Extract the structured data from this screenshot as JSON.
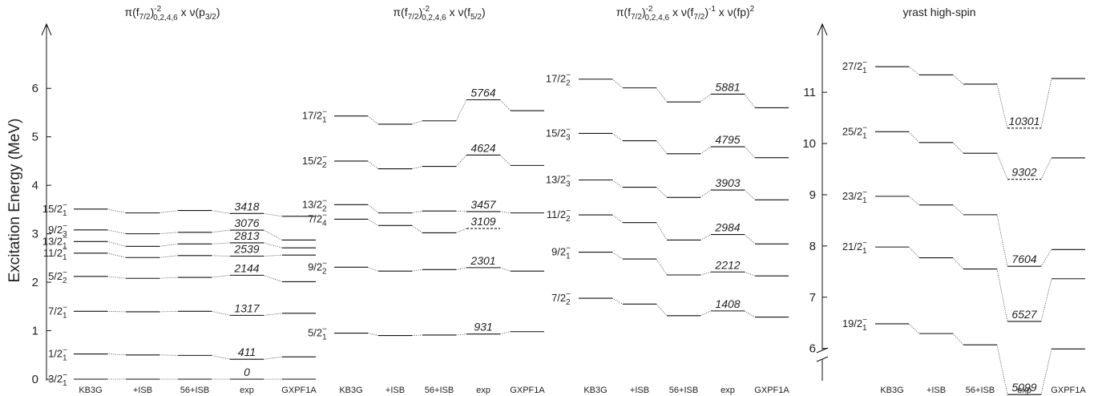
{
  "figure": {
    "ylabel": "Excitation Energy (MeV)",
    "model_labels": [
      "KB3G",
      "+ISB",
      "56+ISB",
      "exp",
      "GXPF1A"
    ],
    "panels": [
      {
        "title": "π(f7/2)-2 0,2,4,6 x ν(p3/2)",
        "title_parts": {
          "pre": "π(f",
          "sub1": "7/2",
          "mid": ")",
          "sup": "-2",
          "sub2": "0,2,4,6",
          "post": " x ν(p",
          "sub3": "3/2",
          "end": ")"
        },
        "ylim": [
          0,
          6.5
        ],
        "yticks": [
          0,
          1,
          2,
          3,
          4,
          5,
          6
        ],
        "levels": [
          {
            "label": "15/2-1",
            "j": "15/2",
            "n": "1",
            "values": [
              3.51,
              3.43,
              3.48,
              3.418,
              3.36
            ],
            "exp": "3418",
            "dashed": false
          },
          {
            "label": "9/2-3",
            "j": "9/2",
            "n": "3",
            "values": [
              3.08,
              3.0,
              3.03,
              3.076,
              2.87
            ],
            "exp": "3076",
            "dashed": false
          },
          {
            "label": "13/2-1",
            "j": "13/2",
            "n": "1",
            "values": [
              2.84,
              2.74,
              2.79,
              2.813,
              2.71
            ],
            "exp": "2813",
            "dashed": false
          },
          {
            "label": "11/2-1",
            "j": "11/2",
            "n": "1",
            "values": [
              2.6,
              2.51,
              2.55,
              2.539,
              2.56
            ],
            "exp": "2539",
            "dashed": false
          },
          {
            "label": "5/2-2",
            "j": "5/2",
            "n": "2",
            "values": [
              2.12,
              2.08,
              2.1,
              2.144,
              2.01
            ],
            "exp": "2144",
            "dashed": false
          },
          {
            "label": "7/2-1",
            "j": "7/2",
            "n": "1",
            "values": [
              1.4,
              1.39,
              1.4,
              1.317,
              1.36
            ],
            "exp": "1317",
            "dashed": false
          },
          {
            "label": "1/2-1",
            "j": "1/2",
            "n": "1",
            "values": [
              0.52,
              0.5,
              0.49,
              0.411,
              0.46
            ],
            "exp": "411",
            "dashed": false
          },
          {
            "label": "3/2-1",
            "j": "3/2",
            "n": "1",
            "values": [
              0,
              0,
              0,
              0,
              0
            ],
            "exp": "0",
            "dashed": false
          }
        ]
      },
      {
        "title": "π(f7/2)-2 0,2,4,6 x ν(f5/2)",
        "title_parts": {
          "pre": "π(f",
          "sub1": "7/2",
          "mid": ")",
          "sup": "-2",
          "sub2": "0,2,4,6",
          "post": " x ν(f",
          "sub3": "5/2",
          "end": ")"
        },
        "ylim": [
          0,
          6.5
        ],
        "levels": [
          {
            "label": "17/2-1",
            "j": "17/2",
            "n": "1",
            "values": [
              5.43,
              5.26,
              5.33,
              5.764,
              5.54
            ],
            "exp": "5764",
            "dashed": false
          },
          {
            "label": "15/2-2",
            "j": "15/2",
            "n": "2",
            "values": [
              4.5,
              4.34,
              4.39,
              4.624,
              4.41
            ],
            "exp": "4624",
            "dashed": false
          },
          {
            "label": "13/2-2",
            "j": "13/2",
            "n": "2",
            "values": [
              3.6,
              3.43,
              3.47,
              3.457,
              3.43
            ],
            "exp": "3457",
            "dashed": false
          },
          {
            "label": "7/2-4",
            "j": "7/2",
            "n": "4",
            "values": [
              3.3,
              3.17,
              3.02,
              3.109,
              null
            ],
            "exp": "3109",
            "dashed": true
          },
          {
            "label": "9/2-2",
            "j": "9/2",
            "n": "2",
            "values": [
              2.31,
              2.23,
              2.26,
              2.301,
              2.23
            ],
            "exp": "2301",
            "dashed": false
          },
          {
            "label": "5/2-1",
            "j": "5/2",
            "n": "1",
            "values": [
              0.95,
              0.9,
              0.91,
              0.931,
              0.98
            ],
            "exp": "931",
            "dashed": false
          }
        ]
      },
      {
        "title": "π(f7/2)-2 0,2,4,6 x ν(f7/2)-1 x ν(fp)2",
        "title_parts": {
          "pre": "π(f",
          "sub1": "7/2",
          "mid": ")",
          "sup": "-2",
          "sub2": "0,2,4,6",
          "post": " x ν(f",
          "sub3": "7/2",
          "end": ")",
          "sup2": "-1",
          "post2": " x ν(fp)",
          "sup3": "2"
        },
        "ylim": [
          0,
          6.5
        ],
        "levels": [
          {
            "label": "17/2-2",
            "j": "17/2",
            "n": "2",
            "values": [
              6.19,
              6.01,
              5.72,
              5.881,
              5.6
            ],
            "exp": "5881",
            "dashed": false
          },
          {
            "label": "15/2-3",
            "j": "15/2",
            "n": "3",
            "values": [
              5.07,
              4.92,
              4.65,
              4.795,
              4.57
            ],
            "exp": "4795",
            "dashed": false
          },
          {
            "label": "13/2-3",
            "j": "13/2",
            "n": "3",
            "values": [
              4.11,
              3.96,
              3.75,
              3.903,
              3.7
            ],
            "exp": "3903",
            "dashed": false
          },
          {
            "label": "11/2-2",
            "j": "11/2",
            "n": "2",
            "values": [
              3.39,
              3.23,
              2.87,
              2.984,
              2.79
            ],
            "exp": "2984",
            "dashed": false
          },
          {
            "label": "9/2-1",
            "j": "9/2",
            "n": "1",
            "values": [
              2.62,
              2.48,
              2.15,
              2.212,
              2.13
            ],
            "exp": "2212",
            "dashed": false
          },
          {
            "label": "7/2-2",
            "j": "7/2",
            "n": "2",
            "values": [
              1.67,
              1.55,
              1.31,
              1.408,
              1.28
            ],
            "exp": "1408",
            "dashed": false
          }
        ]
      },
      {
        "title": "yrast high-spin",
        "ylim": [
          5.4,
          11.55
        ],
        "yticks": [
          6,
          7,
          8,
          9,
          10,
          11
        ],
        "levels": [
          {
            "label": "27/2-1",
            "j": "27/2",
            "n": "1",
            "values": [
              11.5,
              11.34,
              11.16,
              10.301,
              11.27
            ],
            "exp": "10301",
            "dashed": true
          },
          {
            "label": "25/2-1",
            "j": "25/2",
            "n": "1",
            "values": [
              10.23,
              10.02,
              9.81,
              9.302,
              9.72
            ],
            "exp": "9302",
            "dashed": true
          },
          {
            "label": "23/2-1",
            "j": "23/2",
            "n": "1",
            "values": [
              8.97,
              8.8,
              8.61,
              7.604,
              7.93
            ],
            "exp": "7604",
            "dashed": false
          },
          {
            "label": "21/2-1",
            "j": "21/2",
            "n": "1",
            "values": [
              7.98,
              7.77,
              7.55,
              6.527,
              7.36
            ],
            "exp": "6527",
            "dashed": false
          },
          {
            "label": "19/2-1",
            "j": "19/2",
            "n": "1",
            "values": [
              6.48,
              6.29,
              6.07,
              5.099,
              5.99
            ],
            "exp": "5099",
            "dashed": false
          }
        ]
      }
    ]
  },
  "chart_data": [
    {
      "type": "level-scheme",
      "title": "π(f7/2)-2 0,2,4,6 x ν(p3/2)",
      "ylabel": "Excitation Energy (MeV)",
      "categories": [
        "KB3G",
        "+ISB",
        "56+ISB",
        "exp",
        "GXPF1A"
      ],
      "ylim": [
        0,
        6.5
      ],
      "series": [
        {
          "name": "15/2-1",
          "values": [
            3.51,
            3.43,
            3.48,
            3.418,
            3.36
          ]
        },
        {
          "name": "9/2-3",
          "values": [
            3.08,
            3.0,
            3.03,
            3.076,
            2.87
          ]
        },
        {
          "name": "13/2-1",
          "values": [
            2.84,
            2.74,
            2.79,
            2.813,
            2.71
          ]
        },
        {
          "name": "11/2-1",
          "values": [
            2.6,
            2.51,
            2.55,
            2.539,
            2.56
          ]
        },
        {
          "name": "5/2-2",
          "values": [
            2.12,
            2.08,
            2.1,
            2.144,
            2.01
          ]
        },
        {
          "name": "7/2-1",
          "values": [
            1.4,
            1.39,
            1.4,
            1.317,
            1.36
          ]
        },
        {
          "name": "1/2-1",
          "values": [
            0.52,
            0.5,
            0.49,
            0.411,
            0.46
          ]
        },
        {
          "name": "3/2-1",
          "values": [
            0,
            0,
            0,
            0,
            0
          ]
        }
      ]
    },
    {
      "type": "level-scheme",
      "title": "π(f7/2)-2 0,2,4,6 x ν(f5/2)",
      "categories": [
        "KB3G",
        "+ISB",
        "56+ISB",
        "exp",
        "GXPF1A"
      ],
      "ylim": [
        0,
        6.5
      ],
      "series": [
        {
          "name": "17/2-1",
          "values": [
            5.43,
            5.26,
            5.33,
            5.764,
            5.54
          ]
        },
        {
          "name": "15/2-2",
          "values": [
            4.5,
            4.34,
            4.39,
            4.624,
            4.41
          ]
        },
        {
          "name": "13/2-2",
          "values": [
            3.6,
            3.43,
            3.47,
            3.457,
            3.43
          ]
        },
        {
          "name": "7/2-4",
          "values": [
            3.3,
            3.17,
            3.02,
            3.109,
            null
          ]
        },
        {
          "name": "9/2-2",
          "values": [
            2.31,
            2.23,
            2.26,
            2.301,
            2.23
          ]
        },
        {
          "name": "5/2-1",
          "values": [
            0.95,
            0.9,
            0.91,
            0.931,
            0.98
          ]
        }
      ]
    },
    {
      "type": "level-scheme",
      "title": "π(f7/2)-2 0,2,4,6 x ν(f7/2)-1 x ν(fp)2",
      "categories": [
        "KB3G",
        "+ISB",
        "56+ISB",
        "exp",
        "GXPF1A"
      ],
      "ylim": [
        0,
        6.5
      ],
      "series": [
        {
          "name": "17/2-2",
          "values": [
            6.19,
            6.01,
            5.72,
            5.881,
            5.6
          ]
        },
        {
          "name": "15/2-3",
          "values": [
            5.07,
            4.92,
            4.65,
            4.795,
            4.57
          ]
        },
        {
          "name": "13/2-3",
          "values": [
            4.11,
            3.96,
            3.75,
            3.903,
            3.7
          ]
        },
        {
          "name": "11/2-2",
          "values": [
            3.39,
            3.23,
            2.87,
            2.984,
            2.79
          ]
        },
        {
          "name": "9/2-1",
          "values": [
            2.62,
            2.48,
            2.15,
            2.212,
            2.13
          ]
        },
        {
          "name": "7/2-2",
          "values": [
            1.67,
            1.55,
            1.31,
            1.408,
            1.28
          ]
        }
      ]
    },
    {
      "type": "level-scheme",
      "title": "yrast high-spin",
      "categories": [
        "KB3G",
        "+ISB",
        "56+ISB",
        "exp",
        "GXPF1A"
      ],
      "ylim": [
        5.4,
        11.55
      ],
      "series": [
        {
          "name": "27/2-1",
          "values": [
            11.5,
            11.34,
            11.16,
            10.301,
            11.27
          ]
        },
        {
          "name": "25/2-1",
          "values": [
            10.23,
            10.02,
            9.81,
            9.302,
            9.72
          ]
        },
        {
          "name": "23/2-1",
          "values": [
            8.97,
            8.8,
            8.61,
            7.604,
            7.93
          ]
        },
        {
          "name": "21/2-1",
          "values": [
            7.98,
            7.77,
            7.55,
            6.527,
            7.36
          ]
        },
        {
          "name": "19/2-1",
          "values": [
            6.48,
            6.29,
            6.07,
            5.099,
            5.99
          ]
        }
      ]
    }
  ]
}
